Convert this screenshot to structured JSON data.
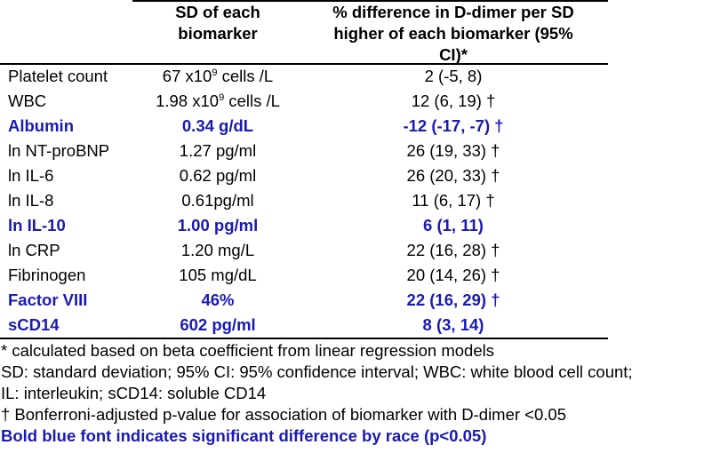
{
  "table": {
    "headers": {
      "col1": "",
      "col2": "SD of each biomarker",
      "col2_lines": [
        "SD of each",
        "biomarker"
      ],
      "col3": "% difference in D-dimer per SD higher of each biomarker (95% CI)*",
      "col3_lines": [
        "% difference in D-dimer per SD",
        "higher of each biomarker (95%",
        "CI)*"
      ]
    },
    "rows": [
      {
        "biomarker": "Platelet count",
        "sd_value": "67 x10",
        "sd_sup": "9",
        "sd_unit": " cells /L",
        "difference": "2 (-5, 8)",
        "significant_by_race": false
      },
      {
        "biomarker": "WBC",
        "sd_value": "1.98 x10",
        "sd_sup": "9",
        "sd_unit": " cells /L",
        "difference": "12 (6, 19) †",
        "significant_by_race": false
      },
      {
        "biomarker": "Albumin",
        "sd_value": "0.34 g/dL",
        "sd_sup": "",
        "sd_unit": "",
        "difference": "-12 (-17, -7) †",
        "significant_by_race": true
      },
      {
        "biomarker": "ln NT-proBNP",
        "sd_value": "1.27 pg/ml",
        "sd_sup": "",
        "sd_unit": "",
        "difference": "26 (19, 33) †",
        "significant_by_race": false
      },
      {
        "biomarker": "ln IL-6",
        "sd_value": "0.62 pg/ml",
        "sd_sup": "",
        "sd_unit": "",
        "difference": "26 (20, 33) †",
        "significant_by_race": false
      },
      {
        "biomarker": "ln IL-8",
        "sd_value": "0.61pg/ml",
        "sd_sup": "",
        "sd_unit": "",
        "difference": "11 (6, 17) †",
        "significant_by_race": false
      },
      {
        "biomarker": "ln IL-10",
        "sd_value": "1.00 pg/ml",
        "sd_sup": "",
        "sd_unit": "",
        "difference": "6 (1, 11)",
        "significant_by_race": true
      },
      {
        "biomarker": "ln CRP",
        "sd_value": "1.20 mg/L",
        "sd_sup": "",
        "sd_unit": "",
        "difference": "22 (16, 28) †",
        "significant_by_race": false
      },
      {
        "biomarker": "Fibrinogen",
        "sd_value": "105 mg/dL",
        "sd_sup": "",
        "sd_unit": "",
        "difference": "20 (14, 26) †",
        "significant_by_race": false
      },
      {
        "biomarker": "Factor VIII",
        "sd_value": "46%",
        "sd_sup": "",
        "sd_unit": "",
        "difference": "22 (16, 29) †",
        "significant_by_race": true
      },
      {
        "biomarker": "sCD14",
        "sd_value": "602 pg/ml",
        "sd_sup": "",
        "sd_unit": "",
        "difference": "8 (3, 14)",
        "significant_by_race": true
      }
    ]
  },
  "footnotes": [
    "* calculated based on beta coefficient from linear regression models",
    "SD: standard deviation; 95% CI: 95% confidence interval; WBC: white blood cell count;",
    "IL: interleukin; sCD14: soluble CD14",
    "† Bonferroni-adjusted p-value for association of biomarker with D-dimer <0.05",
    "Bold blue font indicates significant difference by race (p<0.05)"
  ],
  "colors": {
    "significant_text": "#1a1ab4",
    "normal_text": "#000000",
    "rules": "#000000"
  }
}
